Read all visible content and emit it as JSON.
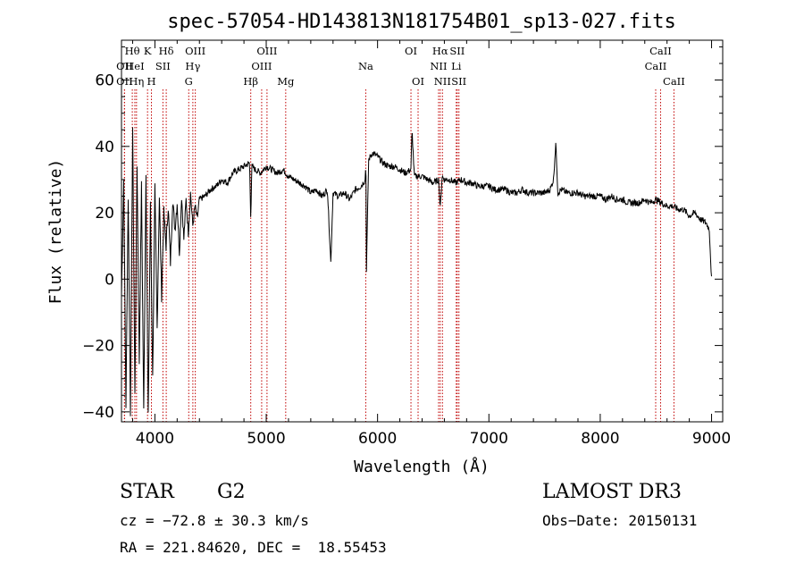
{
  "chart_data": {
    "type": "line",
    "title": "spec-57054-HD143813N181754B01_sp13-027.fits",
    "xlabel": "Wavelength (Å)",
    "ylabel": "Flux (relative)",
    "xlim": [
      3700,
      9100
    ],
    "ylim": [
      -43,
      72
    ],
    "xticks": [
      4000,
      5000,
      6000,
      7000,
      8000,
      9000
    ],
    "yticks": [
      -40,
      -20,
      0,
      20,
      40,
      60
    ],
    "x_tick_labels": [
      "4000",
      "5000",
      "6000",
      "7000",
      "8000",
      "9000"
    ],
    "y_tick_labels": [
      "−40",
      "−20",
      "0",
      "20",
      "40",
      "60"
    ],
    "series": [
      {
        "name": "flux",
        "x": [
          3700,
          3720,
          3740,
          3760,
          3780,
          3800,
          3820,
          3840,
          3860,
          3880,
          3900,
          3920,
          3940,
          3960,
          3980,
          4000,
          4020,
          4040,
          4060,
          4080,
          4100,
          4120,
          4140,
          4160,
          4180,
          4200,
          4220,
          4240,
          4260,
          4280,
          4300,
          4320,
          4340,
          4360,
          4380,
          4400,
          4450,
          4500,
          4550,
          4600,
          4650,
          4700,
          4750,
          4800,
          4850,
          4861,
          4870,
          4900,
          4950,
          5000,
          5050,
          5100,
          5150,
          5200,
          5250,
          5300,
          5350,
          5400,
          5450,
          5500,
          5550,
          5580,
          5600,
          5650,
          5700,
          5750,
          5800,
          5850,
          5890,
          5895,
          5900,
          5920,
          5950,
          6000,
          6050,
          6100,
          6150,
          6200,
          6250,
          6300,
          6310,
          6330,
          6350,
          6400,
          6450,
          6500,
          6550,
          6563,
          6580,
          6600,
          6650,
          6700,
          6750,
          6800,
          6850,
          6900,
          6950,
          7000,
          7050,
          7100,
          7150,
          7200,
          7250,
          7300,
          7350,
          7400,
          7450,
          7500,
          7550,
          7580,
          7600,
          7620,
          7650,
          7700,
          7750,
          7800,
          7850,
          7900,
          7950,
          8000,
          8050,
          8100,
          8150,
          8200,
          8250,
          8300,
          8350,
          8400,
          8450,
          8500,
          8550,
          8600,
          8650,
          8700,
          8750,
          8800,
          8850,
          8900,
          8950,
          8980,
          9000
        ],
        "y": [
          -5,
          30,
          -38,
          25,
          -40,
          46,
          -35,
          35,
          -25,
          28,
          -40,
          33,
          -42,
          22,
          -30,
          27,
          -15,
          25,
          -5,
          20,
          10,
          22,
          5,
          24,
          15,
          23,
          8,
          25,
          12,
          24,
          14,
          26,
          16,
          22,
          18,
          24,
          25,
          27,
          28,
          30,
          29,
          32,
          33,
          34,
          35,
          18,
          34,
          33,
          32,
          34,
          33,
          32,
          33,
          31,
          30,
          29,
          28,
          26,
          27,
          25,
          27,
          5,
          26,
          25,
          26,
          24,
          27,
          28,
          30,
          38,
          3,
          36,
          38,
          37,
          35,
          34,
          34,
          33,
          32,
          33,
          45,
          31,
          31,
          31,
          30,
          29,
          30,
          21,
          31,
          30,
          30,
          29,
          30,
          29,
          29,
          28,
          28,
          28,
          27,
          27,
          27,
          26,
          26,
          27,
          26,
          26,
          26,
          26,
          27,
          30,
          41,
          26,
          27,
          26,
          26,
          26,
          25,
          25,
          25,
          25,
          24,
          25,
          24,
          24,
          23,
          23,
          23,
          24,
          23,
          24,
          23,
          22,
          22,
          21,
          21,
          19,
          20,
          18,
          17,
          15,
          0
        ]
      }
    ],
    "line_markers": [
      {
        "name": "OII",
        "x": 3727,
        "row": 2
      },
      {
        "name": "Hθ",
        "x": 3797,
        "row": 0
      },
      {
        "name": "OII",
        "x": 3727,
        "row": 1
      },
      {
        "name": "HeI",
        "x": 3820,
        "row": 1
      },
      {
        "name": "Hη",
        "x": 3835,
        "row": 2
      },
      {
        "name": "K",
        "x": 3934,
        "row": 0
      },
      {
        "name": "H",
        "x": 3969,
        "row": 2
      },
      {
        "name": "SII",
        "x": 4072,
        "row": 1
      },
      {
        "name": "Hδ",
        "x": 4102,
        "row": 0
      },
      {
        "name": "G",
        "x": 4304,
        "row": 2
      },
      {
        "name": "Hγ",
        "x": 4341,
        "row": 1
      },
      {
        "name": "OIII",
        "x": 4363,
        "row": 0
      },
      {
        "name": "Hβ",
        "x": 4861,
        "row": 2
      },
      {
        "name": "OIII",
        "x": 4959,
        "row": 1
      },
      {
        "name": "OIII",
        "x": 5007,
        "row": 0
      },
      {
        "name": "Mg",
        "x": 5175,
        "row": 2
      },
      {
        "name": "Na",
        "x": 5894,
        "row": 1
      },
      {
        "name": "OI",
        "x": 6300,
        "row": 0
      },
      {
        "name": "OI",
        "x": 6364,
        "row": 2
      },
      {
        "name": "NII",
        "x": 6548,
        "row": 1
      },
      {
        "name": "Hα",
        "x": 6563,
        "row": 0
      },
      {
        "name": "NII",
        "x": 6583,
        "row": 2
      },
      {
        "name": "Li",
        "x": 6707,
        "row": 1
      },
      {
        "name": "SII",
        "x": 6716,
        "row": 0
      },
      {
        "name": "SII",
        "x": 6731,
        "row": 2
      },
      {
        "name": "CaII",
        "x": 8498,
        "row": 1
      },
      {
        "name": "CaII",
        "x": 8542,
        "row": 0
      },
      {
        "name": "CaII",
        "x": 8662,
        "row": 2
      }
    ],
    "grid": false,
    "legend": "none"
  },
  "info": {
    "object_class": "STAR",
    "subclass": "G2",
    "survey": "LAMOST DR3",
    "cz": "cz = −72.8 ± 30.3 km/s",
    "obs_date": "Obs−Date: 20150131",
    "coords": "RA = 221.84620, DEC =  18.55453"
  }
}
